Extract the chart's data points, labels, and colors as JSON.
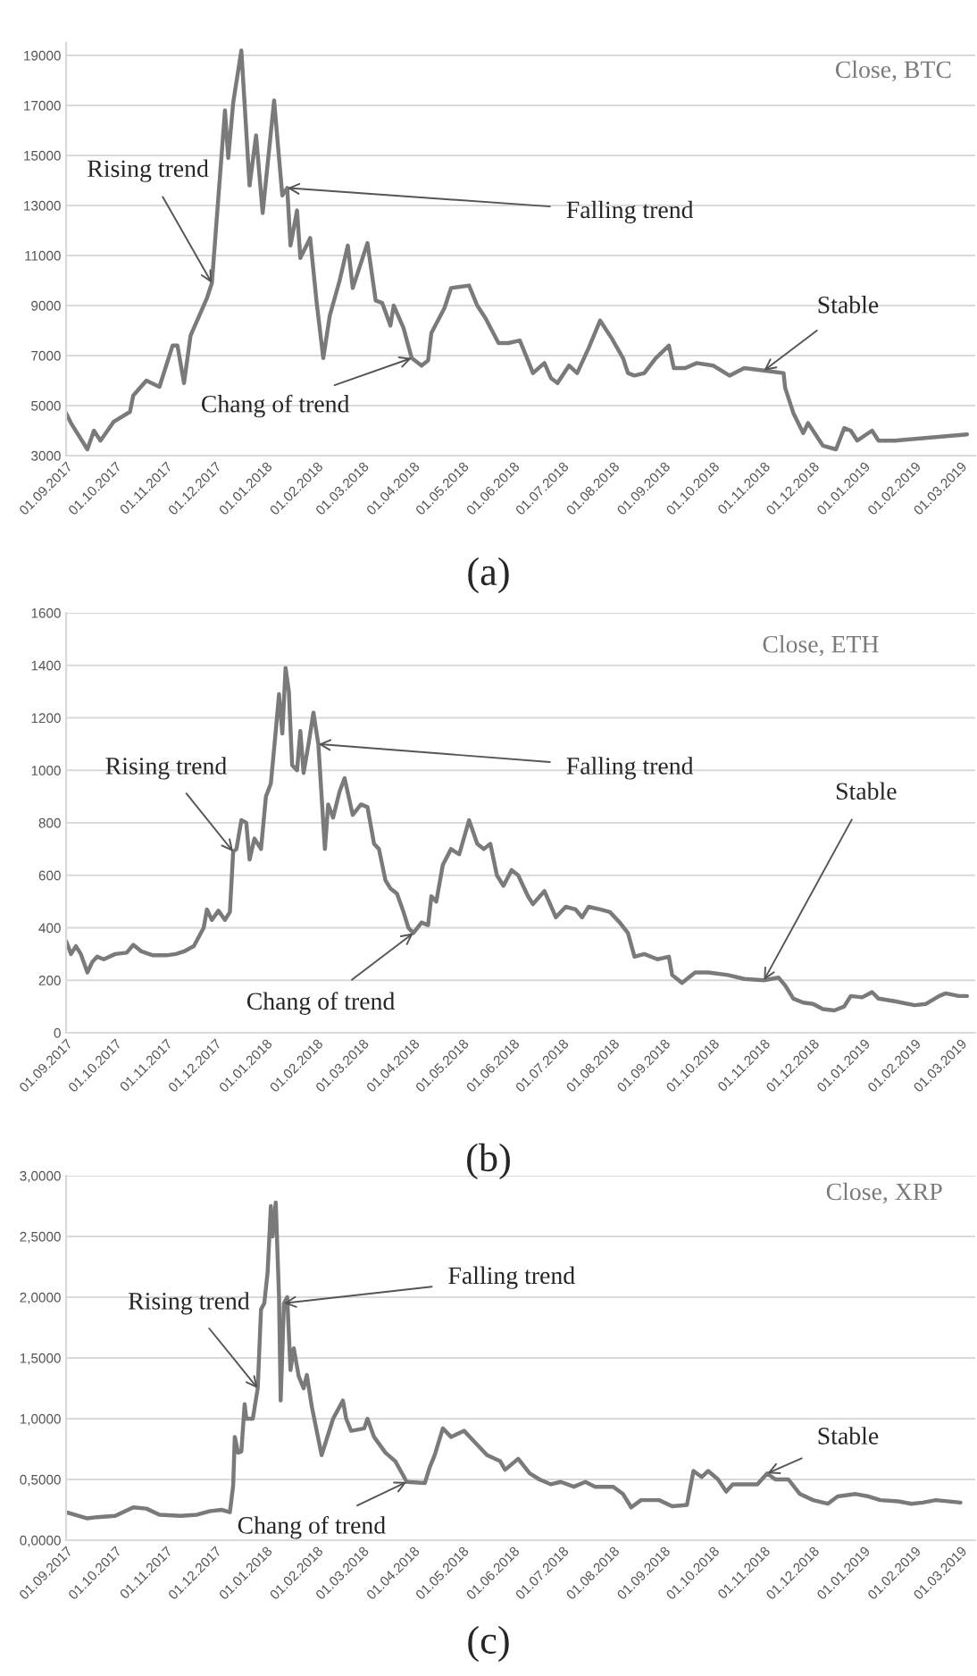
{
  "chart_data": [
    {
      "type": "line",
      "title": "(a)",
      "xlim": [
        "2017-09-01",
        "2019-03-10"
      ],
      "xticks": [
        {
          "value": "2017-09-01",
          "label": "01.09.2017"
        },
        {
          "value": "2017-10-01",
          "label": "01.10.2017"
        },
        {
          "value": "2017-11-01",
          "label": "01.11.2017"
        },
        {
          "value": "2017-12-01",
          "label": "01.12.2017"
        },
        {
          "value": "2018-01-01",
          "label": "01.01.2018"
        },
        {
          "value": "2018-02-01",
          "label": "01.02.2018"
        },
        {
          "value": "2018-03-01",
          "label": "01.03.2018"
        },
        {
          "value": "2018-04-01",
          "label": "01.04.2018"
        },
        {
          "value": "2018-05-01",
          "label": "01.05.2018"
        },
        {
          "value": "2018-06-01",
          "label": "01.06.2018"
        },
        {
          "value": "2018-07-01",
          "label": "01.07.2018"
        },
        {
          "value": "2018-08-01",
          "label": "01.08.2018"
        },
        {
          "value": "2018-09-01",
          "label": "01.09.2018"
        },
        {
          "value": "2018-10-01",
          "label": "01.10.2018"
        },
        {
          "value": "2018-11-01",
          "label": "01.11.2018"
        },
        {
          "value": "2018-12-01",
          "label": "01.12.2018"
        },
        {
          "value": "2019-01-01",
          "label": "01.01.2019"
        },
        {
          "value": "2019-02-01",
          "label": "01.02.2019"
        },
        {
          "value": "2019-03-01",
          "label": "01.03.2019"
        }
      ],
      "ylim": [
        3000,
        19500
      ],
      "yticks": [
        3000,
        5000,
        7000,
        9000,
        11000,
        13000,
        15000,
        17000,
        19000
      ],
      "grid": "y",
      "annotations": [
        {
          "text": "Rising trend",
          "x": "2017-11-29",
          "y": 9900
        },
        {
          "text": "Falling trend",
          "x": "2018-01-14",
          "y": 13700
        },
        {
          "text": "Chang of trend",
          "x": "2018-03-31",
          "y": 6900
        },
        {
          "text": "Stable",
          "x": "2018-11-01",
          "y": 6400
        }
      ],
      "series": [
        {
          "name": "Close, BTC",
          "color": "#7a7a7a",
          "x": [
            "2017-09-01",
            "2017-09-04",
            "2017-09-14",
            "2017-09-18",
            "2017-09-22",
            "2017-09-30",
            "2017-10-10",
            "2017-10-12",
            "2017-10-20",
            "2017-10-28",
            "2017-11-05",
            "2017-11-08",
            "2017-11-12",
            "2017-11-16",
            "2017-11-26",
            "2017-11-29",
            "2017-12-07",
            "2017-12-09",
            "2017-12-12",
            "2017-12-17",
            "2017-12-22",
            "2017-12-26",
            "2017-12-30",
            "2018-01-06",
            "2018-01-09",
            "2018-01-11",
            "2018-01-14",
            "2018-01-16",
            "2018-01-20",
            "2018-01-22",
            "2018-01-28",
            "2018-02-01",
            "2018-02-05",
            "2018-02-09",
            "2018-02-15",
            "2018-02-20",
            "2018-02-23",
            "2018-03-04",
            "2018-03-09",
            "2018-03-13",
            "2018-03-18",
            "2018-03-20",
            "2018-03-26",
            "2018-03-31",
            "2018-04-06",
            "2018-04-10",
            "2018-04-12",
            "2018-04-20",
            "2018-04-24",
            "2018-05-05",
            "2018-05-10",
            "2018-05-15",
            "2018-05-23",
            "2018-05-29",
            "2018-06-05",
            "2018-06-10",
            "2018-06-13",
            "2018-06-20",
            "2018-06-24",
            "2018-06-28",
            "2018-07-05",
            "2018-07-10",
            "2018-07-17",
            "2018-07-24",
            "2018-07-31",
            "2018-08-07",
            "2018-08-10",
            "2018-08-14",
            "2018-08-20",
            "2018-08-27",
            "2018-09-04",
            "2018-09-07",
            "2018-09-14",
            "2018-09-21",
            "2018-10-01",
            "2018-10-11",
            "2018-10-20",
            "2018-11-01",
            "2018-11-13",
            "2018-11-14",
            "2018-11-19",
            "2018-11-25",
            "2018-11-28",
            "2018-12-07",
            "2018-12-15",
            "2018-12-20",
            "2018-12-24",
            "2018-12-28",
            "2019-01-06",
            "2019-01-10",
            "2019-01-20",
            "2019-03-05"
          ],
          "values": [
            4700,
            4300,
            3250,
            4000,
            3600,
            4350,
            4750,
            5400,
            6000,
            5750,
            7400,
            7400,
            5900,
            7800,
            9300,
            9900,
            16800,
            14900,
            17100,
            19200,
            13800,
            15800,
            12700,
            17200,
            14900,
            13400,
            13700,
            11400,
            12800,
            10900,
            11700,
            9100,
            6900,
            8600,
            10000,
            11400,
            9700,
            11500,
            9200,
            9100,
            8200,
            9000,
            8100,
            6900,
            6600,
            6800,
            7900,
            8900,
            9700,
            9800,
            9000,
            8500,
            7500,
            7500,
            7600,
            6800,
            6300,
            6700,
            6100,
            5900,
            6600,
            6300,
            7300,
            8400,
            7700,
            6900,
            6300,
            6200,
            6300,
            6900,
            7400,
            6500,
            6500,
            6700,
            6600,
            6200,
            6500,
            6400,
            6300,
            5700,
            4700,
            3900,
            4300,
            3400,
            3250,
            4100,
            4000,
            3600,
            4000,
            3600,
            3600,
            3850
          ]
        }
      ]
    },
    {
      "type": "line",
      "title": "(b)",
      "xlim": [
        "2017-09-01",
        "2019-03-10"
      ],
      "xticks": [
        {
          "value": "2017-09-01",
          "label": "01.09.2017"
        },
        {
          "value": "2017-10-01",
          "label": "01.10.2017"
        },
        {
          "value": "2017-11-01",
          "label": "01.11.2017"
        },
        {
          "value": "2017-12-01",
          "label": "01.12.2017"
        },
        {
          "value": "2018-01-01",
          "label": "01.01.2018"
        },
        {
          "value": "2018-02-01",
          "label": "01.02.2018"
        },
        {
          "value": "2018-03-01",
          "label": "01.03.2018"
        },
        {
          "value": "2018-04-01",
          "label": "01.04.2018"
        },
        {
          "value": "2018-05-01",
          "label": "01.05.2018"
        },
        {
          "value": "2018-06-01",
          "label": "01.06.2018"
        },
        {
          "value": "2018-07-01",
          "label": "01.07.2018"
        },
        {
          "value": "2018-08-01",
          "label": "01.08.2018"
        },
        {
          "value": "2018-09-01",
          "label": "01.09.2018"
        },
        {
          "value": "2018-10-01",
          "label": "01.10.2018"
        },
        {
          "value": "2018-11-01",
          "label": "01.11.2018"
        },
        {
          "value": "2018-12-01",
          "label": "01.12.2018"
        },
        {
          "value": "2019-01-01",
          "label": "01.01.2019"
        },
        {
          "value": "2019-02-01",
          "label": "01.02.2019"
        },
        {
          "value": "2019-03-01",
          "label": "01.03.2019"
        }
      ],
      "ylim": [
        0,
        1600
      ],
      "yticks": [
        0,
        200,
        400,
        600,
        800,
        1000,
        1200,
        1400,
        1600
      ],
      "grid": "y",
      "annotations": [
        {
          "text": "Rising trend",
          "x": "2017-12-12",
          "y": 690
        },
        {
          "text": "Falling trend",
          "x": "2018-02-02",
          "y": 1100
        },
        {
          "text": "Chang of trend",
          "x": "2018-04-01",
          "y": 380
        },
        {
          "text": "Stable",
          "x": "2018-11-01",
          "y": 200
        }
      ],
      "series": [
        {
          "name": "Close, ETH",
          "color": "#7a7a7a",
          "x": [
            "2017-09-01",
            "2017-09-04",
            "2017-09-07",
            "2017-09-10",
            "2017-09-14",
            "2017-09-17",
            "2017-09-20",
            "2017-09-24",
            "2017-10-01",
            "2017-10-08",
            "2017-10-12",
            "2017-10-17",
            "2017-10-24",
            "2017-11-01",
            "2017-11-07",
            "2017-11-12",
            "2017-11-18",
            "2017-11-24",
            "2017-11-26",
            "2017-11-29",
            "2017-12-03",
            "2017-12-07",
            "2017-12-10",
            "2017-12-12",
            "2017-12-14",
            "2017-12-17",
            "2017-12-20",
            "2017-12-22",
            "2017-12-25",
            "2017-12-29",
            "2018-01-01",
            "2018-01-04",
            "2018-01-07",
            "2018-01-09",
            "2018-01-11",
            "2018-01-13",
            "2018-01-15",
            "2018-01-17",
            "2018-01-20",
            "2018-01-22",
            "2018-01-24",
            "2018-01-27",
            "2018-01-30",
            "2018-02-02",
            "2018-02-06",
            "2018-02-08",
            "2018-02-11",
            "2018-02-15",
            "2018-02-18",
            "2018-02-23",
            "2018-02-28",
            "2018-03-04",
            "2018-03-08",
            "2018-03-11",
            "2018-03-15",
            "2018-03-18",
            "2018-03-22",
            "2018-03-26",
            "2018-03-29",
            "2018-04-01",
            "2018-04-06",
            "2018-04-10",
            "2018-04-12",
            "2018-04-15",
            "2018-04-19",
            "2018-04-24",
            "2018-04-29",
            "2018-05-05",
            "2018-05-10",
            "2018-05-14",
            "2018-05-18",
            "2018-05-22",
            "2018-05-26",
            "2018-05-31",
            "2018-06-04",
            "2018-06-10",
            "2018-06-13",
            "2018-06-20",
            "2018-06-27",
            "2018-07-03",
            "2018-07-09",
            "2018-07-13",
            "2018-07-17",
            "2018-07-24",
            "2018-07-30",
            "2018-08-05",
            "2018-08-10",
            "2018-08-14",
            "2018-08-20",
            "2018-08-28",
            "2018-09-04",
            "2018-09-06",
            "2018-09-12",
            "2018-09-20",
            "2018-09-28",
            "2018-10-10",
            "2018-10-20",
            "2018-11-01",
            "2018-11-10",
            "2018-11-14",
            "2018-11-19",
            "2018-11-25",
            "2018-12-01",
            "2018-12-07",
            "2018-12-14",
            "2018-12-20",
            "2018-12-24",
            "2018-12-31",
            "2019-01-06",
            "2019-01-10",
            "2019-01-20",
            "2019-02-01",
            "2019-02-08",
            "2019-02-16",
            "2019-02-20",
            "2019-02-28",
            "2019-03-05"
          ],
          "values": [
            350,
            300,
            330,
            300,
            230,
            270,
            290,
            280,
            300,
            305,
            335,
            310,
            295,
            295,
            300,
            310,
            330,
            400,
            470,
            430,
            465,
            430,
            460,
            690,
            700,
            810,
            800,
            660,
            740,
            700,
            900,
            950,
            1150,
            1290,
            1140,
            1390,
            1300,
            1020,
            1000,
            1150,
            990,
            1100,
            1220,
            1100,
            700,
            870,
            820,
            920,
            970,
            830,
            870,
            860,
            720,
            700,
            580,
            550,
            530,
            460,
            400,
            380,
            420,
            410,
            520,
            500,
            640,
            700,
            680,
            810,
            720,
            700,
            720,
            600,
            560,
            620,
            600,
            520,
            490,
            540,
            440,
            480,
            470,
            440,
            480,
            470,
            460,
            420,
            380,
            290,
            300,
            280,
            290,
            220,
            190,
            230,
            230,
            220,
            205,
            200,
            210,
            180,
            130,
            115,
            110,
            90,
            85,
            100,
            140,
            135,
            155,
            130,
            120,
            105,
            110,
            140,
            150,
            140,
            140
          ]
        }
      ]
    },
    {
      "type": "line",
      "title": "(c)",
      "xlim": [
        "2017-09-01",
        "2019-03-10"
      ],
      "xticks": [
        {
          "value": "2017-09-01",
          "label": "01.09.2017"
        },
        {
          "value": "2017-10-01",
          "label": "01.10.2017"
        },
        {
          "value": "2017-11-01",
          "label": "01.11.2017"
        },
        {
          "value": "2017-12-01",
          "label": "01.12.2017"
        },
        {
          "value": "2018-01-01",
          "label": "01.01.2018"
        },
        {
          "value": "2018-02-01",
          "label": "01.02.2018"
        },
        {
          "value": "2018-03-01",
          "label": "01.03.2018"
        },
        {
          "value": "2018-04-01",
          "label": "01.04.2018"
        },
        {
          "value": "2018-05-01",
          "label": "01.05.2018"
        },
        {
          "value": "2018-06-01",
          "label": "01.06.2018"
        },
        {
          "value": "2018-07-01",
          "label": "01.07.2018"
        },
        {
          "value": "2018-08-01",
          "label": "01.08.2018"
        },
        {
          "value": "2018-09-01",
          "label": "01.09.2018"
        },
        {
          "value": "2018-10-01",
          "label": "01.10.2018"
        },
        {
          "value": "2018-11-01",
          "label": "01.11.2018"
        },
        {
          "value": "2018-12-01",
          "label": "01.12.2018"
        },
        {
          "value": "2019-01-01",
          "label": "01.01.2019"
        },
        {
          "value": "2019-02-01",
          "label": "01.02.2019"
        },
        {
          "value": "2019-03-01",
          "label": "01.03.2019"
        }
      ],
      "ylim": [
        0,
        3
      ],
      "yticks": [
        {
          "value": 0,
          "label": "0,0000"
        },
        {
          "value": 0.5,
          "label": "0,5000"
        },
        {
          "value": 1,
          "label": "1,0000"
        },
        {
          "value": 1.5,
          "label": "1,5000"
        },
        {
          "value": 2,
          "label": "2,0000"
        },
        {
          "value": 2.5,
          "label": "2,5000"
        },
        {
          "value": 3,
          "label": "3,0000"
        }
      ],
      "grid": "y",
      "annotations": [
        {
          "text": "Rising trend",
          "x": "2017-12-27",
          "y": 1.25
        },
        {
          "text": "Falling trend",
          "x": "2018-01-12",
          "y": 1.95
        },
        {
          "text": "Chang of trend",
          "x": "2018-03-28",
          "y": 0.48
        },
        {
          "text": "Stable",
          "x": "2018-11-03",
          "y": 0.55
        }
      ],
      "series": [
        {
          "name": "Close, XRP",
          "color": "#7a7a7a",
          "x": [
            "2017-09-01",
            "2017-09-14",
            "2017-09-20",
            "2017-10-01",
            "2017-10-12",
            "2017-10-20",
            "2017-10-28",
            "2017-11-10",
            "2017-11-20",
            "2017-11-28",
            "2017-12-05",
            "2017-12-10",
            "2017-12-12",
            "2017-12-13",
            "2017-12-15",
            "2017-12-17",
            "2017-12-19",
            "2017-12-20",
            "2017-12-24",
            "2017-12-27",
            "2017-12-29",
            "2017-12-31",
            "2018-01-02",
            "2018-01-04",
            "2018-01-05",
            "2018-01-07",
            "2018-01-09",
            "2018-01-10",
            "2018-01-12",
            "2018-01-14",
            "2018-01-16",
            "2018-01-18",
            "2018-01-21",
            "2018-01-24",
            "2018-01-26",
            "2018-01-29",
            "2018-02-04",
            "2018-02-11",
            "2018-02-17",
            "2018-02-19",
            "2018-02-22",
            "2018-03-02",
            "2018-03-04",
            "2018-03-08",
            "2018-03-15",
            "2018-03-21",
            "2018-03-28",
            "2018-04-08",
            "2018-04-11",
            "2018-04-14",
            "2018-04-19",
            "2018-04-24",
            "2018-05-02",
            "2018-05-09",
            "2018-05-16",
            "2018-05-24",
            "2018-05-27",
            "2018-06-04",
            "2018-06-11",
            "2018-06-17",
            "2018-06-24",
            "2018-06-30",
            "2018-07-08",
            "2018-07-15",
            "2018-07-21",
            "2018-08-01",
            "2018-08-07",
            "2018-08-12",
            "2018-08-18",
            "2018-08-29",
            "2018-09-06",
            "2018-09-15",
            "2018-09-19",
            "2018-09-24",
            "2018-09-28",
            "2018-10-04",
            "2018-10-09",
            "2018-10-13",
            "2018-10-28",
            "2018-11-03",
            "2018-11-08",
            "2018-11-16",
            "2018-11-23",
            "2018-12-01",
            "2018-12-10",
            "2018-12-16",
            "2018-12-27",
            "2019-01-04",
            "2019-01-11",
            "2019-01-22",
            "2019-01-30",
            "2019-02-06",
            "2019-02-14",
            "2019-03-01"
          ],
          "values": [
            0.23,
            0.18,
            0.19,
            0.2,
            0.27,
            0.26,
            0.21,
            0.2,
            0.21,
            0.24,
            0.25,
            0.23,
            0.45,
            0.85,
            0.72,
            0.73,
            1.12,
            1.0,
            1.0,
            1.25,
            1.9,
            1.95,
            2.2,
            2.75,
            2.5,
            2.78,
            2.0,
            1.15,
            1.95,
            2.0,
            1.4,
            1.58,
            1.35,
            1.25,
            1.36,
            1.1,
            0.7,
            1.0,
            1.15,
            1.0,
            0.9,
            0.92,
            1.0,
            0.85,
            0.72,
            0.65,
            0.48,
            0.47,
            0.6,
            0.7,
            0.92,
            0.85,
            0.9,
            0.8,
            0.7,
            0.65,
            0.58,
            0.67,
            0.55,
            0.5,
            0.46,
            0.48,
            0.44,
            0.48,
            0.44,
            0.44,
            0.38,
            0.27,
            0.33,
            0.33,
            0.28,
            0.29,
            0.57,
            0.52,
            0.57,
            0.5,
            0.4,
            0.46,
            0.46,
            0.55,
            0.5,
            0.5,
            0.38,
            0.33,
            0.3,
            0.36,
            0.38,
            0.36,
            0.33,
            0.32,
            0.3,
            0.31,
            0.33,
            0.31
          ]
        }
      ]
    }
  ]
}
